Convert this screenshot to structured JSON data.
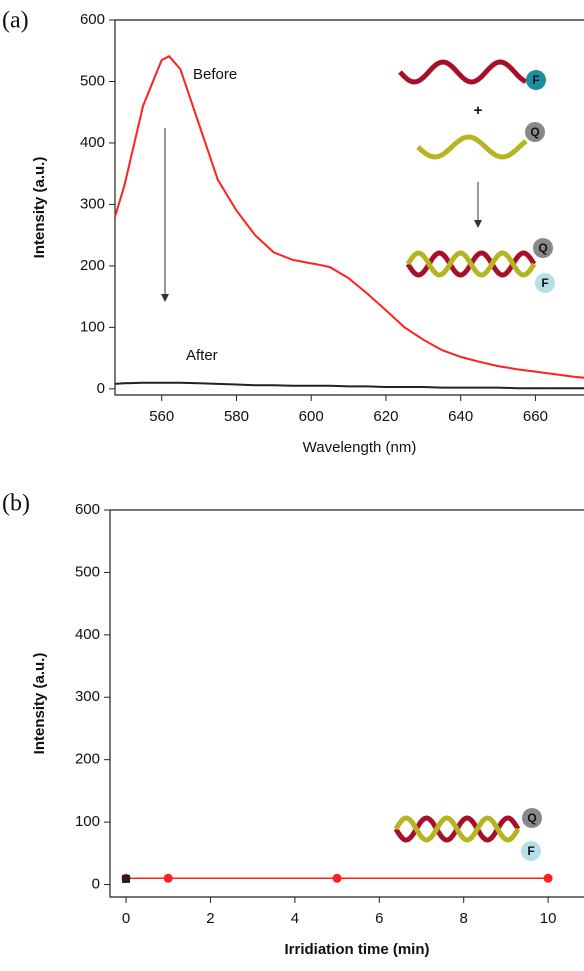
{
  "chart_data": [
    {
      "type": "line",
      "panel_label": "(a)",
      "x_label": "Wavelength (nm)",
      "y_label": "Intensity (a.u.)",
      "xlim": [
        547.5,
        673
      ],
      "ylim": [
        -10,
        600
      ],
      "xticks": [
        560,
        580,
        600,
        620,
        640,
        660
      ],
      "yticks": [
        0,
        100,
        200,
        300,
        400,
        500,
        600
      ],
      "x": [
        547.5,
        550,
        555,
        560,
        562,
        565,
        570,
        575,
        580,
        585,
        590,
        595,
        600,
        602,
        605,
        610,
        615,
        620,
        625,
        630,
        635,
        640,
        645,
        650,
        655,
        660,
        665,
        670,
        673
      ],
      "series": [
        {
          "color": "#ff2020",
          "values": [
            280,
            330,
            460,
            535,
            541,
            520,
            430,
            340,
            290,
            250,
            222,
            210,
            204,
            202,
            198,
            180,
            155,
            128,
            100,
            80,
            63,
            52,
            44,
            37,
            32,
            28,
            24,
            20,
            18
          ]
        },
        {
          "color": "#222222",
          "values": [
            8,
            9,
            10,
            10,
            10,
            10,
            9,
            8,
            7,
            6,
            6,
            5,
            5,
            5,
            5,
            4,
            4,
            3,
            3,
            3,
            2,
            2,
            2,
            2,
            1,
            1,
            1,
            1,
            1
          ]
        }
      ],
      "annotations": [
        {
          "text": "Before",
          "color": "#ff2020"
        },
        {
          "text": "After",
          "color": "#111111"
        }
      ],
      "diagram_labels": [
        "F",
        "+",
        "Q",
        "Q",
        "F"
      ]
    },
    {
      "type": "line",
      "panel_label": "(b)",
      "x_label": "Irridiation time (min)",
      "y_label": "Intensity (a.u.)",
      "xlim": [
        -0.38,
        10.85
      ],
      "ylim": [
        -20,
        600
      ],
      "xticks": [
        0,
        2,
        4,
        6,
        8,
        10
      ],
      "yticks": [
        0,
        100,
        200,
        300,
        400,
        500,
        600
      ],
      "series": [
        {
          "color": "#ff2020",
          "x": [
            0,
            1,
            5,
            10
          ],
          "values": [
            10,
            10,
            10,
            10
          ],
          "marker": "circle"
        },
        {
          "color": "#222222",
          "x": [
            0
          ],
          "values": [
            9
          ],
          "marker": "square"
        }
      ],
      "diagram_labels": [
        "Q",
        "F"
      ]
    }
  ]
}
